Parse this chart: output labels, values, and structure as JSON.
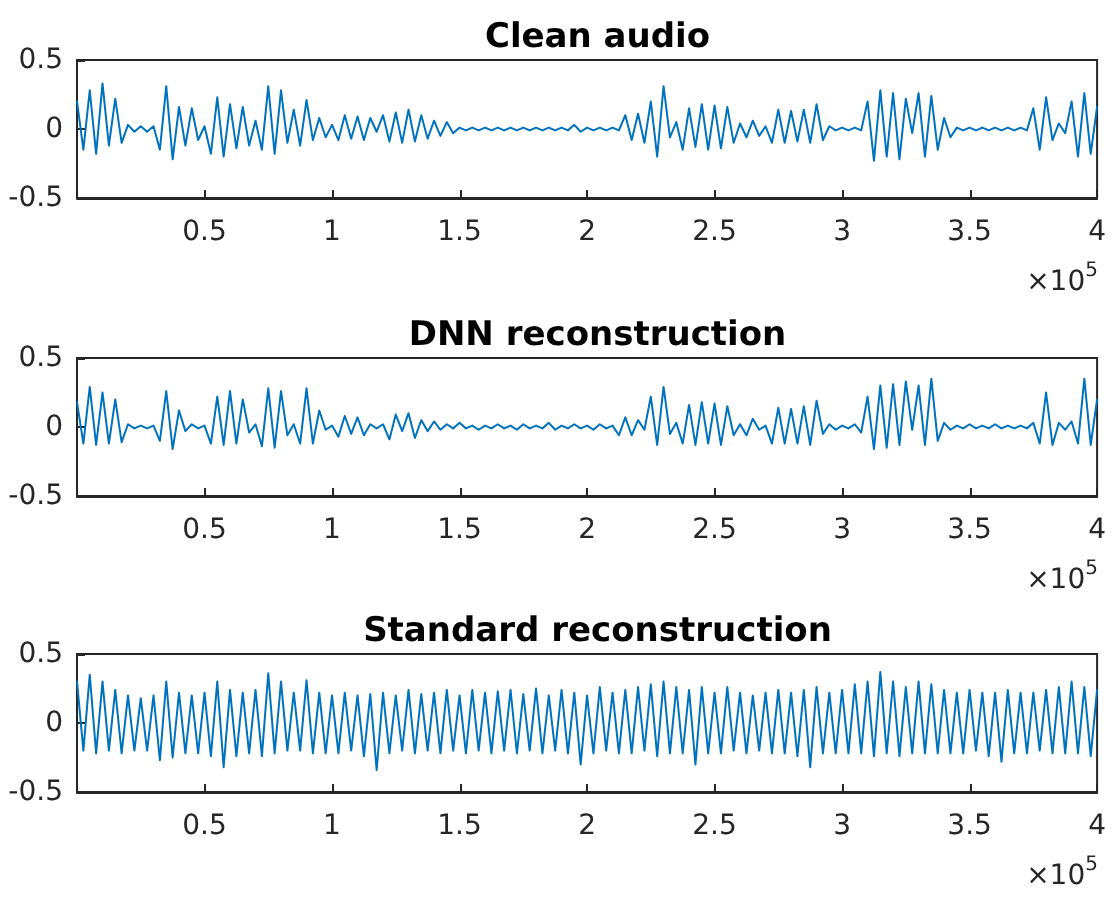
{
  "chart_data": [
    {
      "type": "line",
      "title": "Clean audio",
      "color": "#0072bd",
      "marker": "none",
      "grid": false,
      "xlim": [
        0,
        4
      ],
      "xticks": [
        0.5,
        1,
        1.5,
        2,
        2.5,
        3,
        3.5,
        4
      ],
      "ylim": [
        -0.5,
        0.5
      ],
      "yticks": [
        -0.5,
        0,
        0.5
      ],
      "annotations": [
        "×10$^{5}$"
      ],
      "x": [
        0,
        0.025,
        0.05,
        0.075,
        0.1,
        0.125,
        0.15,
        0.175,
        0.2,
        0.225,
        0.25,
        0.275,
        0.3,
        0.325,
        0.35,
        0.375,
        0.4,
        0.425,
        0.45,
        0.475,
        0.5,
        0.525,
        0.55,
        0.575,
        0.6,
        0.625,
        0.65,
        0.675,
        0.7,
        0.725,
        0.75,
        0.775,
        0.8,
        0.825,
        0.85,
        0.875,
        0.9,
        0.925,
        0.95,
        0.975,
        1,
        1.025,
        1.05,
        1.075,
        1.1,
        1.125,
        1.15,
        1.175,
        1.2,
        1.225,
        1.25,
        1.275,
        1.3,
        1.325,
        1.35,
        1.375,
        1.4,
        1.425,
        1.45,
        1.475,
        1.5,
        1.525,
        1.55,
        1.575,
        1.6,
        1.625,
        1.65,
        1.675,
        1.7,
        1.725,
        1.75,
        1.775,
        1.8,
        1.825,
        1.85,
        1.875,
        1.9,
        1.925,
        1.95,
        1.975,
        2,
        2.025,
        2.05,
        2.075,
        2.1,
        2.125,
        2.15,
        2.175,
        2.2,
        2.225,
        2.25,
        2.275,
        2.3,
        2.325,
        2.35,
        2.375,
        2.4,
        2.425,
        2.45,
        2.475,
        2.5,
        2.525,
        2.55,
        2.575,
        2.6,
        2.625,
        2.65,
        2.675,
        2.7,
        2.725,
        2.75,
        2.775,
        2.8,
        2.825,
        2.85,
        2.875,
        2.9,
        2.925,
        2.95,
        2.975,
        3,
        3.025,
        3.05,
        3.075,
        3.1,
        3.125,
        3.15,
        3.175,
        3.2,
        3.225,
        3.25,
        3.275,
        3.3,
        3.325,
        3.35,
        3.375,
        3.4,
        3.425,
        3.45,
        3.475,
        3.5,
        3.525,
        3.55,
        3.575,
        3.6,
        3.625,
        3.65,
        3.675,
        3.7,
        3.725,
        3.75,
        3.775,
        3.8,
        3.825,
        3.85,
        3.875,
        3.9,
        3.925,
        3.95,
        3.975,
        4
      ],
      "values": [
        0.2,
        -0.15,
        0.28,
        -0.18,
        0.33,
        -0.12,
        0.22,
        -0.1,
        0.03,
        -0.02,
        0.02,
        -0.02,
        0.02,
        -0.15,
        0.31,
        -0.22,
        0.16,
        -0.12,
        0.15,
        -0.08,
        0.02,
        -0.18,
        0.23,
        -0.2,
        0.18,
        -0.14,
        0.16,
        -0.12,
        0.06,
        -0.15,
        0.31,
        -0.18,
        0.28,
        -0.1,
        0.14,
        -0.12,
        0.21,
        -0.08,
        0.08,
        -0.06,
        0.03,
        -0.08,
        0.1,
        -0.07,
        0.09,
        -0.08,
        0.08,
        -0.02,
        0.1,
        -0.09,
        0.12,
        -0.1,
        0.14,
        -0.09,
        0.1,
        -0.07,
        0.06,
        -0.05,
        0.05,
        -0.03,
        0.01,
        -0.01,
        0.01,
        -0.01,
        0.01,
        -0.01,
        0.01,
        -0.01,
        0.01,
        -0.01,
        0.01,
        -0.01,
        0.01,
        -0.01,
        0.01,
        -0.01,
        0.01,
        -0.01,
        0.03,
        -0.02,
        0.01,
        -0.01,
        0.01,
        -0.01,
        0.01,
        -0.01,
        0.1,
        -0.08,
        0.11,
        -0.1,
        0.2,
        -0.2,
        0.31,
        -0.06,
        0.05,
        -0.15,
        0.15,
        -0.13,
        0.18,
        -0.15,
        0.17,
        -0.14,
        0.16,
        -0.1,
        0.04,
        -0.06,
        0.06,
        -0.05,
        0.02,
        -0.1,
        0.14,
        -0.1,
        0.13,
        -0.09,
        0.14,
        -0.1,
        0.18,
        -0.08,
        0.02,
        -0.01,
        0.01,
        -0.01,
        0.01,
        -0.01,
        0.2,
        -0.23,
        0.28,
        -0.2,
        0.26,
        -0.22,
        0.22,
        -0.03,
        0.26,
        -0.2,
        0.24,
        -0.15,
        0.08,
        -0.06,
        0.01,
        -0.01,
        0.01,
        -0.01,
        0.01,
        -0.01,
        0.01,
        -0.01,
        0.01,
        -0.01,
        0.01,
        -0.01,
        0.15,
        -0.15,
        0.23,
        -0.08,
        0.04,
        -0.03,
        0.2,
        -0.2,
        0.26,
        -0.18,
        0.16
      ]
    },
    {
      "type": "line",
      "title": "DNN reconstruction",
      "color": "#0072bd",
      "marker": "none",
      "grid": false,
      "xlim": [
        0,
        4
      ],
      "xticks": [
        0.5,
        1,
        1.5,
        2,
        2.5,
        3,
        3.5,
        4
      ],
      "ylim": [
        -0.5,
        0.5
      ],
      "yticks": [
        -0.5,
        0,
        0.5
      ],
      "annotations": [
        "×10$^{5}$"
      ],
      "x": [
        0,
        0.025,
        0.05,
        0.075,
        0.1,
        0.125,
        0.15,
        0.175,
        0.2,
        0.225,
        0.25,
        0.275,
        0.3,
        0.325,
        0.35,
        0.375,
        0.4,
        0.425,
        0.45,
        0.475,
        0.5,
        0.525,
        0.55,
        0.575,
        0.6,
        0.625,
        0.65,
        0.675,
        0.7,
        0.725,
        0.75,
        0.775,
        0.8,
        0.825,
        0.85,
        0.875,
        0.9,
        0.925,
        0.95,
        0.975,
        1,
        1.025,
        1.05,
        1.075,
        1.1,
        1.125,
        1.15,
        1.175,
        1.2,
        1.225,
        1.25,
        1.275,
        1.3,
        1.325,
        1.35,
        1.375,
        1.4,
        1.425,
        1.45,
        1.475,
        1.5,
        1.525,
        1.55,
        1.575,
        1.6,
        1.625,
        1.65,
        1.675,
        1.7,
        1.725,
        1.75,
        1.775,
        1.8,
        1.825,
        1.85,
        1.875,
        1.9,
        1.925,
        1.95,
        1.975,
        2,
        2.025,
        2.05,
        2.075,
        2.1,
        2.125,
        2.15,
        2.175,
        2.2,
        2.225,
        2.25,
        2.275,
        2.3,
        2.325,
        2.35,
        2.375,
        2.4,
        2.425,
        2.45,
        2.475,
        2.5,
        2.525,
        2.55,
        2.575,
        2.6,
        2.625,
        2.65,
        2.675,
        2.7,
        2.725,
        2.75,
        2.775,
        2.8,
        2.825,
        2.85,
        2.875,
        2.9,
        2.925,
        2.95,
        2.975,
        3,
        3.025,
        3.05,
        3.075,
        3.1,
        3.125,
        3.15,
        3.175,
        3.2,
        3.225,
        3.25,
        3.275,
        3.3,
        3.325,
        3.35,
        3.375,
        3.4,
        3.425,
        3.45,
        3.475,
        3.5,
        3.525,
        3.55,
        3.575,
        3.6,
        3.625,
        3.65,
        3.675,
        3.7,
        3.725,
        3.75,
        3.775,
        3.8,
        3.825,
        3.85,
        3.875,
        3.9,
        3.925,
        3.95,
        3.975,
        4
      ],
      "values": [
        0.18,
        -0.12,
        0.29,
        -0.13,
        0.25,
        -0.12,
        0.2,
        -0.11,
        0.02,
        -0.01,
        0.01,
        -0.01,
        0.01,
        -0.1,
        0.26,
        -0.16,
        0.12,
        -0.03,
        0.02,
        -0.01,
        0.01,
        -0.12,
        0.22,
        -0.13,
        0.26,
        -0.12,
        0.2,
        -0.04,
        0.02,
        -0.14,
        0.28,
        -0.15,
        0.26,
        -0.06,
        0.02,
        -0.12,
        0.28,
        -0.12,
        0.12,
        -0.02,
        0.01,
        -0.07,
        0.08,
        -0.05,
        0.07,
        -0.06,
        0.02,
        -0.01,
        0.02,
        -0.09,
        0.09,
        -0.03,
        0.1,
        -0.08,
        0.05,
        -0.03,
        0.04,
        -0.02,
        0.02,
        -0.01,
        0.03,
        -0.01,
        0.01,
        -0.02,
        0.01,
        -0.01,
        0.02,
        -0.01,
        0.01,
        -0.02,
        0.02,
        -0.01,
        0.01,
        -0.01,
        0.03,
        -0.02,
        0.01,
        -0.01,
        0.02,
        -0.01,
        0.01,
        -0.02,
        0.02,
        -0.01,
        0.01,
        -0.06,
        0.07,
        -0.06,
        0.05,
        -0.02,
        0.22,
        -0.13,
        0.29,
        -0.05,
        0.03,
        -0.12,
        0.16,
        -0.13,
        0.18,
        -0.12,
        0.17,
        -0.13,
        0.15,
        -0.06,
        0.02,
        -0.06,
        0.06,
        -0.02,
        0.01,
        -0.12,
        0.14,
        -0.12,
        0.13,
        -0.12,
        0.15,
        -0.13,
        0.19,
        -0.05,
        0.02,
        -0.02,
        0.01,
        -0.01,
        0.02,
        -0.04,
        0.22,
        -0.16,
        0.3,
        -0.15,
        0.31,
        -0.13,
        0.33,
        -0.02,
        0.3,
        -0.13,
        0.35,
        -0.1,
        0.03,
        -0.02,
        0.01,
        -0.01,
        0.02,
        -0.01,
        0.01,
        -0.01,
        0.02,
        -0.01,
        0.01,
        -0.01,
        0.01,
        -0.01,
        0.03,
        -0.12,
        0.25,
        -0.13,
        0.03,
        -0.02,
        0.04,
        -0.12,
        0.35,
        -0.13,
        0.2
      ]
    },
    {
      "type": "line",
      "title": "Standard reconstruction",
      "color": "#0072bd",
      "marker": "none",
      "grid": false,
      "xlim": [
        0,
        4
      ],
      "xticks": [
        0.5,
        1,
        1.5,
        2,
        2.5,
        3,
        3.5,
        4
      ],
      "ylim": [
        -0.5,
        0.5
      ],
      "yticks": [
        -0.5,
        0,
        0.5
      ],
      "annotations": [
        "×10$^{5}$"
      ],
      "x": [
        0,
        0.025,
        0.05,
        0.075,
        0.1,
        0.125,
        0.15,
        0.175,
        0.2,
        0.225,
        0.25,
        0.275,
        0.3,
        0.325,
        0.35,
        0.375,
        0.4,
        0.425,
        0.45,
        0.475,
        0.5,
        0.525,
        0.55,
        0.575,
        0.6,
        0.625,
        0.65,
        0.675,
        0.7,
        0.725,
        0.75,
        0.775,
        0.8,
        0.825,
        0.85,
        0.875,
        0.9,
        0.925,
        0.95,
        0.975,
        1,
        1.025,
        1.05,
        1.075,
        1.1,
        1.125,
        1.15,
        1.175,
        1.2,
        1.225,
        1.25,
        1.275,
        1.3,
        1.325,
        1.35,
        1.375,
        1.4,
        1.425,
        1.45,
        1.475,
        1.5,
        1.525,
        1.55,
        1.575,
        1.6,
        1.625,
        1.65,
        1.675,
        1.7,
        1.725,
        1.75,
        1.775,
        1.8,
        1.825,
        1.85,
        1.875,
        1.9,
        1.925,
        1.95,
        1.975,
        2,
        2.025,
        2.05,
        2.075,
        2.1,
        2.125,
        2.15,
        2.175,
        2.2,
        2.225,
        2.25,
        2.275,
        2.3,
        2.325,
        2.35,
        2.375,
        2.4,
        2.425,
        2.45,
        2.475,
        2.5,
        2.525,
        2.55,
        2.575,
        2.6,
        2.625,
        2.65,
        2.675,
        2.7,
        2.725,
        2.75,
        2.775,
        2.8,
        2.825,
        2.85,
        2.875,
        2.9,
        2.925,
        2.95,
        2.975,
        3,
        3.025,
        3.05,
        3.075,
        3.1,
        3.125,
        3.15,
        3.175,
        3.2,
        3.225,
        3.25,
        3.275,
        3.3,
        3.325,
        3.35,
        3.375,
        3.4,
        3.425,
        3.45,
        3.475,
        3.5,
        3.525,
        3.55,
        3.575,
        3.6,
        3.625,
        3.65,
        3.675,
        3.7,
        3.725,
        3.75,
        3.775,
        3.8,
        3.825,
        3.85,
        3.875,
        3.9,
        3.925,
        3.95,
        3.975,
        4
      ],
      "values": [
        0.3,
        -0.2,
        0.35,
        -0.22,
        0.3,
        -0.2,
        0.24,
        -0.22,
        0.2,
        -0.2,
        0.18,
        -0.2,
        0.2,
        -0.27,
        0.3,
        -0.25,
        0.22,
        -0.22,
        0.2,
        -0.22,
        0.22,
        -0.24,
        0.3,
        -0.32,
        0.24,
        -0.24,
        0.22,
        -0.22,
        0.24,
        -0.24,
        0.36,
        -0.22,
        0.3,
        -0.2,
        0.22,
        -0.2,
        0.31,
        -0.22,
        0.22,
        -0.22,
        0.2,
        -0.22,
        0.22,
        -0.2,
        0.2,
        -0.24,
        0.21,
        -0.34,
        0.22,
        -0.22,
        0.2,
        -0.2,
        0.24,
        -0.22,
        0.21,
        -0.2,
        0.22,
        -0.22,
        0.24,
        -0.2,
        0.2,
        -0.22,
        0.24,
        -0.2,
        0.22,
        -0.22,
        0.23,
        -0.2,
        0.24,
        -0.22,
        0.21,
        -0.2,
        0.25,
        -0.22,
        0.2,
        -0.2,
        0.24,
        -0.22,
        0.22,
        -0.3,
        0.2,
        -0.22,
        0.26,
        -0.2,
        0.22,
        -0.22,
        0.24,
        -0.22,
        0.26,
        -0.2,
        0.28,
        -0.24,
        0.3,
        -0.22,
        0.26,
        -0.22,
        0.24,
        -0.3,
        0.26,
        -0.22,
        0.22,
        -0.22,
        0.26,
        -0.2,
        0.22,
        -0.22,
        0.2,
        -0.2,
        0.22,
        -0.22,
        0.24,
        -0.22,
        0.22,
        -0.24,
        0.24,
        -0.32,
        0.26,
        -0.22,
        0.22,
        -0.22,
        0.24,
        -0.22,
        0.28,
        -0.22,
        0.3,
        -0.24,
        0.37,
        -0.22,
        0.3,
        -0.24,
        0.26,
        -0.22,
        0.3,
        -0.22,
        0.28,
        -0.22,
        0.24,
        -0.22,
        0.22,
        -0.22,
        0.24,
        -0.2,
        0.22,
        -0.24,
        0.22,
        -0.28,
        0.24,
        -0.22,
        0.22,
        -0.22,
        0.22,
        -0.2,
        0.24,
        -0.22,
        0.26,
        -0.22,
        0.3,
        -0.22,
        0.26,
        -0.24,
        0.24
      ]
    }
  ]
}
